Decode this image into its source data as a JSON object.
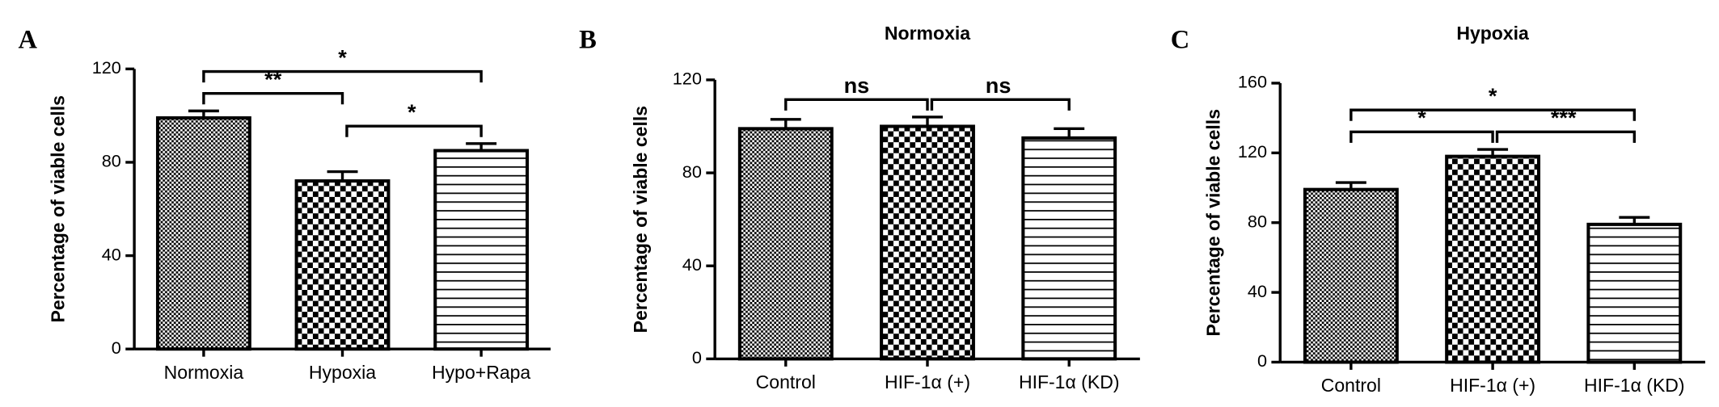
{
  "chart_data": [
    {
      "type": "bar",
      "panel": "A",
      "ylabel": "Percentage of viable cells",
      "categories": [
        "Normoxia",
        "Hypoxia",
        "Hypo+Rapa"
      ],
      "values": [
        99,
        72,
        85
      ],
      "errors": [
        3,
        4,
        3
      ],
      "color": "#000000",
      "ylim": [
        0,
        120
      ],
      "yticks": [
        0,
        40,
        80,
        120
      ],
      "brackets": [
        {
          "from": "Normoxia",
          "to": "Hypoxia",
          "label": "**"
        },
        {
          "from": "Hypoxia",
          "to": "Hypo+Rapa",
          "label": "*"
        },
        {
          "from": "Normoxia",
          "to": "Hypo+Rapa",
          "label": "*"
        }
      ]
    },
    {
      "type": "bar",
      "panel": "B",
      "title": "Normoxia",
      "ylabel": "Percentage of viable cells",
      "categories": [
        "Control",
        "HIF-1α (+)",
        "HIF-1α (KD)"
      ],
      "values": [
        99,
        100,
        95
      ],
      "errors": [
        4,
        4,
        4
      ],
      "color": "#000000",
      "ylim": [
        0,
        120
      ],
      "yticks": [
        0,
        40,
        80,
        120
      ],
      "brackets": [
        {
          "from": "Control",
          "to": "HIF-1α (+)",
          "label": "ns"
        },
        {
          "from": "HIF-1α (+)",
          "to": "HIF-1α (KD)",
          "label": "ns"
        }
      ]
    },
    {
      "type": "bar",
      "panel": "C",
      "title": "Hypoxia",
      "ylabel": "Percentage of viable cells",
      "categories": [
        "Control",
        "HIF-1α (+)",
        "HIF-1α (KD)"
      ],
      "values": [
        99,
        118,
        79
      ],
      "errors": [
        4,
        4,
        4
      ],
      "color": "#000000",
      "ylim": [
        0,
        160
      ],
      "yticks": [
        0,
        40,
        80,
        120,
        160
      ],
      "brackets": [
        {
          "from": "Control",
          "to": "HIF-1α (+)",
          "label": "*"
        },
        {
          "from": "HIF-1α (+)",
          "to": "HIF-1α (KD)",
          "label": "***"
        },
        {
          "from": "Control",
          "to": "HIF-1α (KD)",
          "label": "*"
        }
      ]
    }
  ]
}
